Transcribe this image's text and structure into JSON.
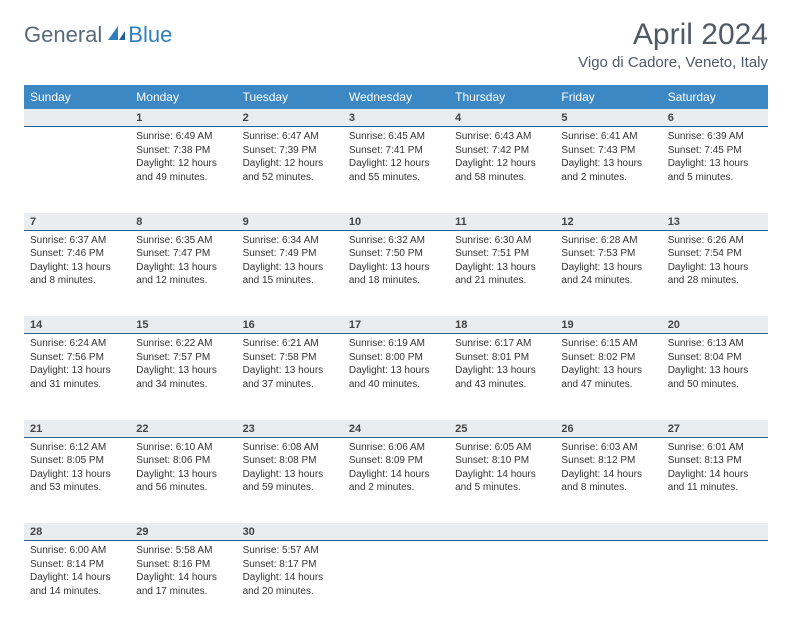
{
  "brand": {
    "word1": "General",
    "word2": "Blue"
  },
  "title": "April 2024",
  "location": "Vigo di Cadore, Veneto, Italy",
  "colors": {
    "header_bg": "#3b88c4",
    "header_text": "#ffffff",
    "daynum_bg": "#e9edf0",
    "daynum_border": "#2f5f8f",
    "body_text": "#333333",
    "title_text": "#505a66",
    "logo_gray": "#5a6a7a",
    "logo_blue": "#2f7fbf",
    "background": "#ffffff"
  },
  "typography": {
    "title_fontsize": 30,
    "location_fontsize": 15,
    "header_fontsize": 12,
    "daynum_fontsize": 11,
    "cell_fontsize": 10
  },
  "weekdays": [
    "Sunday",
    "Monday",
    "Tuesday",
    "Wednesday",
    "Thursday",
    "Friday",
    "Saturday"
  ],
  "weeks": [
    [
      null,
      {
        "day": "1",
        "sunrise": "Sunrise: 6:49 AM",
        "sunset": "Sunset: 7:38 PM",
        "daylight1": "Daylight: 12 hours",
        "daylight2": "and 49 minutes."
      },
      {
        "day": "2",
        "sunrise": "Sunrise: 6:47 AM",
        "sunset": "Sunset: 7:39 PM",
        "daylight1": "Daylight: 12 hours",
        "daylight2": "and 52 minutes."
      },
      {
        "day": "3",
        "sunrise": "Sunrise: 6:45 AM",
        "sunset": "Sunset: 7:41 PM",
        "daylight1": "Daylight: 12 hours",
        "daylight2": "and 55 minutes."
      },
      {
        "day": "4",
        "sunrise": "Sunrise: 6:43 AM",
        "sunset": "Sunset: 7:42 PM",
        "daylight1": "Daylight: 12 hours",
        "daylight2": "and 58 minutes."
      },
      {
        "day": "5",
        "sunrise": "Sunrise: 6:41 AM",
        "sunset": "Sunset: 7:43 PM",
        "daylight1": "Daylight: 13 hours",
        "daylight2": "and 2 minutes."
      },
      {
        "day": "6",
        "sunrise": "Sunrise: 6:39 AM",
        "sunset": "Sunset: 7:45 PM",
        "daylight1": "Daylight: 13 hours",
        "daylight2": "and 5 minutes."
      }
    ],
    [
      {
        "day": "7",
        "sunrise": "Sunrise: 6:37 AM",
        "sunset": "Sunset: 7:46 PM",
        "daylight1": "Daylight: 13 hours",
        "daylight2": "and 8 minutes."
      },
      {
        "day": "8",
        "sunrise": "Sunrise: 6:35 AM",
        "sunset": "Sunset: 7:47 PM",
        "daylight1": "Daylight: 13 hours",
        "daylight2": "and 12 minutes."
      },
      {
        "day": "9",
        "sunrise": "Sunrise: 6:34 AM",
        "sunset": "Sunset: 7:49 PM",
        "daylight1": "Daylight: 13 hours",
        "daylight2": "and 15 minutes."
      },
      {
        "day": "10",
        "sunrise": "Sunrise: 6:32 AM",
        "sunset": "Sunset: 7:50 PM",
        "daylight1": "Daylight: 13 hours",
        "daylight2": "and 18 minutes."
      },
      {
        "day": "11",
        "sunrise": "Sunrise: 6:30 AM",
        "sunset": "Sunset: 7:51 PM",
        "daylight1": "Daylight: 13 hours",
        "daylight2": "and 21 minutes."
      },
      {
        "day": "12",
        "sunrise": "Sunrise: 6:28 AM",
        "sunset": "Sunset: 7:53 PM",
        "daylight1": "Daylight: 13 hours",
        "daylight2": "and 24 minutes."
      },
      {
        "day": "13",
        "sunrise": "Sunrise: 6:26 AM",
        "sunset": "Sunset: 7:54 PM",
        "daylight1": "Daylight: 13 hours",
        "daylight2": "and 28 minutes."
      }
    ],
    [
      {
        "day": "14",
        "sunrise": "Sunrise: 6:24 AM",
        "sunset": "Sunset: 7:56 PM",
        "daylight1": "Daylight: 13 hours",
        "daylight2": "and 31 minutes."
      },
      {
        "day": "15",
        "sunrise": "Sunrise: 6:22 AM",
        "sunset": "Sunset: 7:57 PM",
        "daylight1": "Daylight: 13 hours",
        "daylight2": "and 34 minutes."
      },
      {
        "day": "16",
        "sunrise": "Sunrise: 6:21 AM",
        "sunset": "Sunset: 7:58 PM",
        "daylight1": "Daylight: 13 hours",
        "daylight2": "and 37 minutes."
      },
      {
        "day": "17",
        "sunrise": "Sunrise: 6:19 AM",
        "sunset": "Sunset: 8:00 PM",
        "daylight1": "Daylight: 13 hours",
        "daylight2": "and 40 minutes."
      },
      {
        "day": "18",
        "sunrise": "Sunrise: 6:17 AM",
        "sunset": "Sunset: 8:01 PM",
        "daylight1": "Daylight: 13 hours",
        "daylight2": "and 43 minutes."
      },
      {
        "day": "19",
        "sunrise": "Sunrise: 6:15 AM",
        "sunset": "Sunset: 8:02 PM",
        "daylight1": "Daylight: 13 hours",
        "daylight2": "and 47 minutes."
      },
      {
        "day": "20",
        "sunrise": "Sunrise: 6:13 AM",
        "sunset": "Sunset: 8:04 PM",
        "daylight1": "Daylight: 13 hours",
        "daylight2": "and 50 minutes."
      }
    ],
    [
      {
        "day": "21",
        "sunrise": "Sunrise: 6:12 AM",
        "sunset": "Sunset: 8:05 PM",
        "daylight1": "Daylight: 13 hours",
        "daylight2": "and 53 minutes."
      },
      {
        "day": "22",
        "sunrise": "Sunrise: 6:10 AM",
        "sunset": "Sunset: 8:06 PM",
        "daylight1": "Daylight: 13 hours",
        "daylight2": "and 56 minutes."
      },
      {
        "day": "23",
        "sunrise": "Sunrise: 6:08 AM",
        "sunset": "Sunset: 8:08 PM",
        "daylight1": "Daylight: 13 hours",
        "daylight2": "and 59 minutes."
      },
      {
        "day": "24",
        "sunrise": "Sunrise: 6:06 AM",
        "sunset": "Sunset: 8:09 PM",
        "daylight1": "Daylight: 14 hours",
        "daylight2": "and 2 minutes."
      },
      {
        "day": "25",
        "sunrise": "Sunrise: 6:05 AM",
        "sunset": "Sunset: 8:10 PM",
        "daylight1": "Daylight: 14 hours",
        "daylight2": "and 5 minutes."
      },
      {
        "day": "26",
        "sunrise": "Sunrise: 6:03 AM",
        "sunset": "Sunset: 8:12 PM",
        "daylight1": "Daylight: 14 hours",
        "daylight2": "and 8 minutes."
      },
      {
        "day": "27",
        "sunrise": "Sunrise: 6:01 AM",
        "sunset": "Sunset: 8:13 PM",
        "daylight1": "Daylight: 14 hours",
        "daylight2": "and 11 minutes."
      }
    ],
    [
      {
        "day": "28",
        "sunrise": "Sunrise: 6:00 AM",
        "sunset": "Sunset: 8:14 PM",
        "daylight1": "Daylight: 14 hours",
        "daylight2": "and 14 minutes."
      },
      {
        "day": "29",
        "sunrise": "Sunrise: 5:58 AM",
        "sunset": "Sunset: 8:16 PM",
        "daylight1": "Daylight: 14 hours",
        "daylight2": "and 17 minutes."
      },
      {
        "day": "30",
        "sunrise": "Sunrise: 5:57 AM",
        "sunset": "Sunset: 8:17 PM",
        "daylight1": "Daylight: 14 hours",
        "daylight2": "and 20 minutes."
      },
      null,
      null,
      null,
      null
    ]
  ]
}
